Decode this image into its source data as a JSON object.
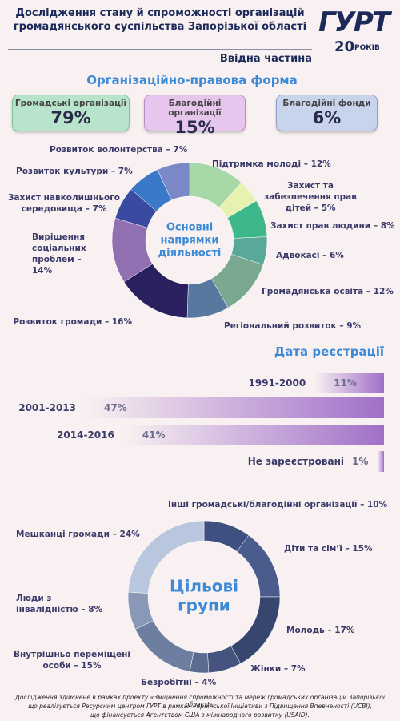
{
  "header": {
    "title": [
      "Дослідження стану й спроможності організацій",
      "громадянського суспільства Запорізької області"
    ],
    "section": "Ввідна частина",
    "logo": {
      "name": "ГУРТ",
      "years": "20",
      "word": "РОКІВ"
    }
  },
  "legal_form": {
    "title": "Організаційно-правова форма",
    "items": [
      {
        "label": "Громадські організації",
        "value": "79%",
        "color": "#b8e4cc",
        "border": "#7cc49c"
      },
      {
        "label": "Благодійні організації",
        "value": "15%",
        "color": "#e6c6ec",
        "border": "#b98cc8"
      },
      {
        "label": "Благодійні фонди",
        "value": "6%",
        "color": "#c8d4ec",
        "border": "#8ea0c8"
      }
    ]
  },
  "chart_data": [
    {
      "type": "donut",
      "center_label": [
        "Основні",
        "напрямки",
        "діяльності"
      ],
      "categories": [
        "Підтримка молоді – 12%",
        "Захист та забезпечення прав дітей – 5%",
        "Захист прав людини – 8%",
        "Адвокасі – 6%",
        "Громадянська освіта – 12%",
        "Регіональний розвиток – 9%",
        "Розвиток громади – 16%",
        "Вирішення соціальних проблем – 14%",
        "Захист навколишнього середовища – 7%",
        "Розвиток культури – 7%",
        "Розвиток волонтерства – 7%"
      ],
      "values": [
        12,
        5,
        8,
        6,
        12,
        9,
        16,
        14,
        7,
        7,
        7
      ],
      "colors": [
        "#a6d8a8",
        "#e8f2b0",
        "#3cb88a",
        "#5aa89a",
        "#7aa890",
        "#5878a0",
        "#2a2060",
        "#9070b0",
        "#3a4aa0",
        "#3a78c8",
        "#7a88c8"
      ]
    },
    {
      "type": "bar",
      "orientation": "horizontal",
      "title": "Дата реєстрації",
      "categories": [
        "1991-2000",
        "2001-2013",
        "2014-2016",
        "Не зареєстровані"
      ],
      "values": [
        11,
        47,
        41,
        1
      ],
      "value_labels": [
        "11%",
        "47%",
        "41%",
        "1%"
      ],
      "color": "#a070c8"
    },
    {
      "type": "donut",
      "center_label": [
        "Цільові",
        "групи"
      ],
      "categories": [
        "Інші громадські/благодійні організації – 10%",
        "Діти та сім’ї – 15%",
        "Молодь – 17%",
        "Жінки – 7%",
        "Безробітні – 4%",
        "Внутрішньо переміщені особи – 15%",
        "Люди з інвалідністю – 8%",
        "Мешканці громади – 24%"
      ],
      "values": [
        10,
        15,
        17,
        7,
        4,
        15,
        8,
        24
      ],
      "colors": [
        "#3e5080",
        "#4a5c8c",
        "#36466e",
        "#44547e",
        "#5a6a90",
        "#6e7ea0",
        "#8a98b8",
        "#b8c6de"
      ]
    }
  ],
  "footer": [
    "Дослідження здійснене в рамках проекту «Зміцнення спроможності та мереж громадських організацій Запорізької області»,",
    "що реалізується Ресурсним центром ГУРТ в рамках Української Ініціативи з Підвищення Впевненості (UCBI),",
    "що фінансується Агентством США з міжнародного розвитку (USAID)."
  ]
}
